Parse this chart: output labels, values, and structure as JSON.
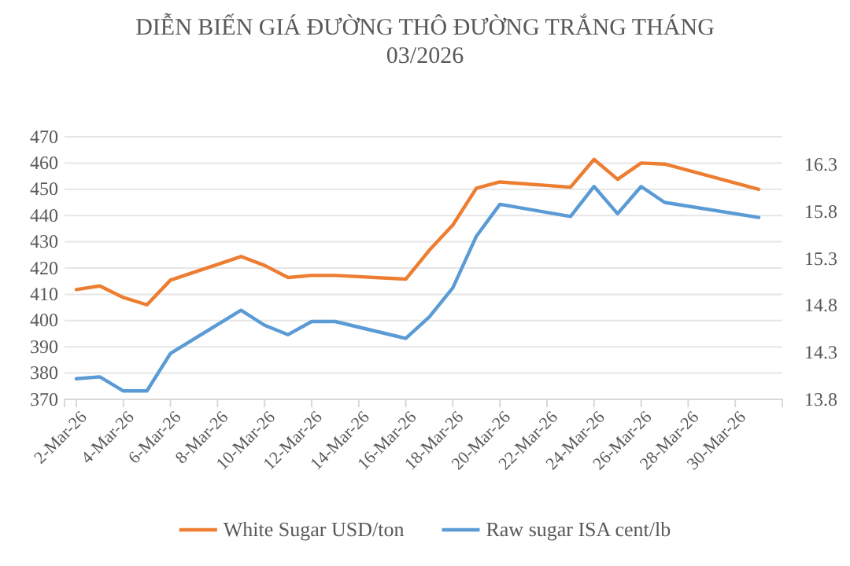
{
  "chart_data": {
    "type": "line",
    "title": "DIỄN BIẾN GIÁ ĐƯỜNG THÔ ĐƯỜNG TRẮNG THÁNG 03/2026",
    "x": [
      "2026-03-02",
      "2026-03-03",
      "2026-03-04",
      "2026-03-05",
      "2026-03-06",
      "2026-03-09",
      "2026-03-10",
      "2026-03-11",
      "2026-03-12",
      "2026-03-13",
      "2026-03-16",
      "2026-03-17",
      "2026-03-18",
      "2026-03-19",
      "2026-03-20",
      "2026-03-23",
      "2026-03-24",
      "2026-03-25",
      "2026-03-26",
      "2026-03-27",
      "2026-03-31"
    ],
    "series": [
      {
        "name": "White Sugar USD/ton",
        "color": "#ed7d31",
        "values": [
          411.8,
          413.2,
          408.8,
          406,
          415.4,
          424.4,
          421,
          416.4,
          417.2,
          417.2,
          415.8,
          426.8,
          436.4,
          450.4,
          452.8,
          450.8,
          461.4,
          453.8,
          460,
          459.6,
          450
        ]
      },
      {
        "name": "Raw sugar ISA cent/lb",
        "color": "#5b9bd5",
        "axis": "y2",
        "values": [
          14.02,
          14.04,
          13.89,
          13.89,
          14.29,
          14.75,
          14.59,
          14.49,
          14.63,
          14.63,
          14.45,
          14.68,
          14.99,
          15.54,
          15.88,
          15.75,
          16.07,
          15.78,
          16.07,
          15.9,
          15.74
        ]
      }
    ],
    "xlim": [
      "2026-03-01T12:00",
      "2026-04-01"
    ],
    "xticks": [
      {
        "value": "2026-03-02",
        "label": "2-Mar-26"
      },
      {
        "value": "2026-03-04",
        "label": "4-Mar-26"
      },
      {
        "value": "2026-03-06",
        "label": "6-Mar-26"
      },
      {
        "value": "2026-03-08",
        "label": "8-Mar-26"
      },
      {
        "value": "2026-03-10",
        "label": "10-Mar-26"
      },
      {
        "value": "2026-03-12",
        "label": "12-Mar-26"
      },
      {
        "value": "2026-03-14",
        "label": "14-Mar-26"
      },
      {
        "value": "2026-03-16",
        "label": "16-Mar-26"
      },
      {
        "value": "2026-03-18",
        "label": "18-Mar-26"
      },
      {
        "value": "2026-03-20",
        "label": "20-Mar-26"
      },
      {
        "value": "2026-03-22",
        "label": "22-Mar-26"
      },
      {
        "value": "2026-03-24",
        "label": "24-Mar-26"
      },
      {
        "value": "2026-03-26",
        "label": "26-Mar-26"
      },
      {
        "value": "2026-03-28",
        "label": "28-Mar-26"
      },
      {
        "value": "2026-03-30",
        "label": "30-Mar-26"
      }
    ],
    "ylim": [
      370,
      470
    ],
    "yticks": [
      370,
      380,
      390,
      400,
      410,
      420,
      430,
      440,
      450,
      460,
      470
    ],
    "y2lim": [
      13.8,
      16.6
    ],
    "y2ticks": [
      13.8,
      14.3,
      14.8,
      15.3,
      15.8,
      16.3
    ],
    "grid": "y",
    "legend": "bottom",
    "marker": "none",
    "line_style": "solid"
  }
}
